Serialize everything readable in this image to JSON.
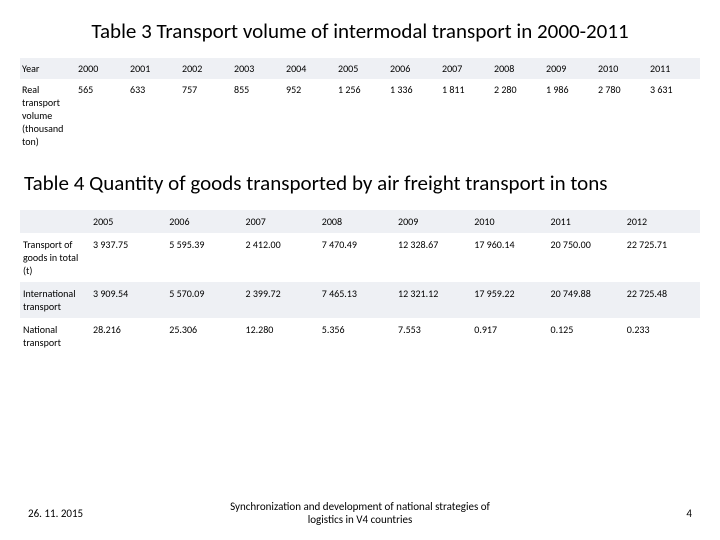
{
  "table3": {
    "title": "Table 3 Transport volume of intermodal transport in 2000-2011",
    "type": "table",
    "background_color": "#ffffff",
    "row_band_color": "#eef0f4",
    "font_size": 10,
    "row_labels": [
      "Year",
      "Real transport volume (thousand ton)"
    ],
    "columns": [
      "2000",
      "2001",
      "2002",
      "2003",
      "2004",
      "2005",
      "2006",
      "2007",
      "2008",
      "2009",
      "2010",
      "2011"
    ],
    "rows": [
      [
        "2000",
        "2001",
        "2002",
        "2003",
        "2004",
        "2005",
        "2006",
        "2007",
        "2008",
        "2009",
        "2010",
        "2011"
      ],
      [
        "565",
        "633",
        "757",
        "855",
        "952",
        "1 256",
        "1 336",
        "1 811",
        "2 280",
        "1 986",
        "2 780",
        "3 631"
      ]
    ]
  },
  "table4": {
    "title": "Table 4 Quantity of goods transported by air freight transport in tons",
    "type": "table",
    "background_color": "#ffffff",
    "row_band_color": "#eef0f4",
    "font_size": 10,
    "row_labels": [
      "",
      "Transport of goods in total (t)",
      "International transport",
      "National transport"
    ],
    "columns": [
      "2005",
      "2006",
      "2007",
      "2008",
      "2009",
      "2010",
      "2011",
      "2012"
    ],
    "rows": [
      [
        "2005",
        "2006",
        "2007",
        "2008",
        "2009",
        "2010",
        "2011",
        "2012"
      ],
      [
        "3 937.75",
        "5 595.39",
        "2 412.00",
        "7 470.49",
        "12 328.67",
        "17 960.14",
        "20 750.00",
        "22 725.71"
      ],
      [
        "3 909.54",
        "5 570.09",
        "2 399.72",
        "7 465.13",
        "12 321.12",
        "17 959.22",
        "20 749.88",
        "22 725.48"
      ],
      [
        "28.216",
        "25.306",
        "12.280",
        "5.356",
        "7.553",
        "0.917",
        "0.125",
        "0.233"
      ]
    ]
  },
  "footer": {
    "date": "26. 11. 2015",
    "center": "Synchronization and development of national strategies of logistics in V4 countries",
    "page": "4"
  }
}
